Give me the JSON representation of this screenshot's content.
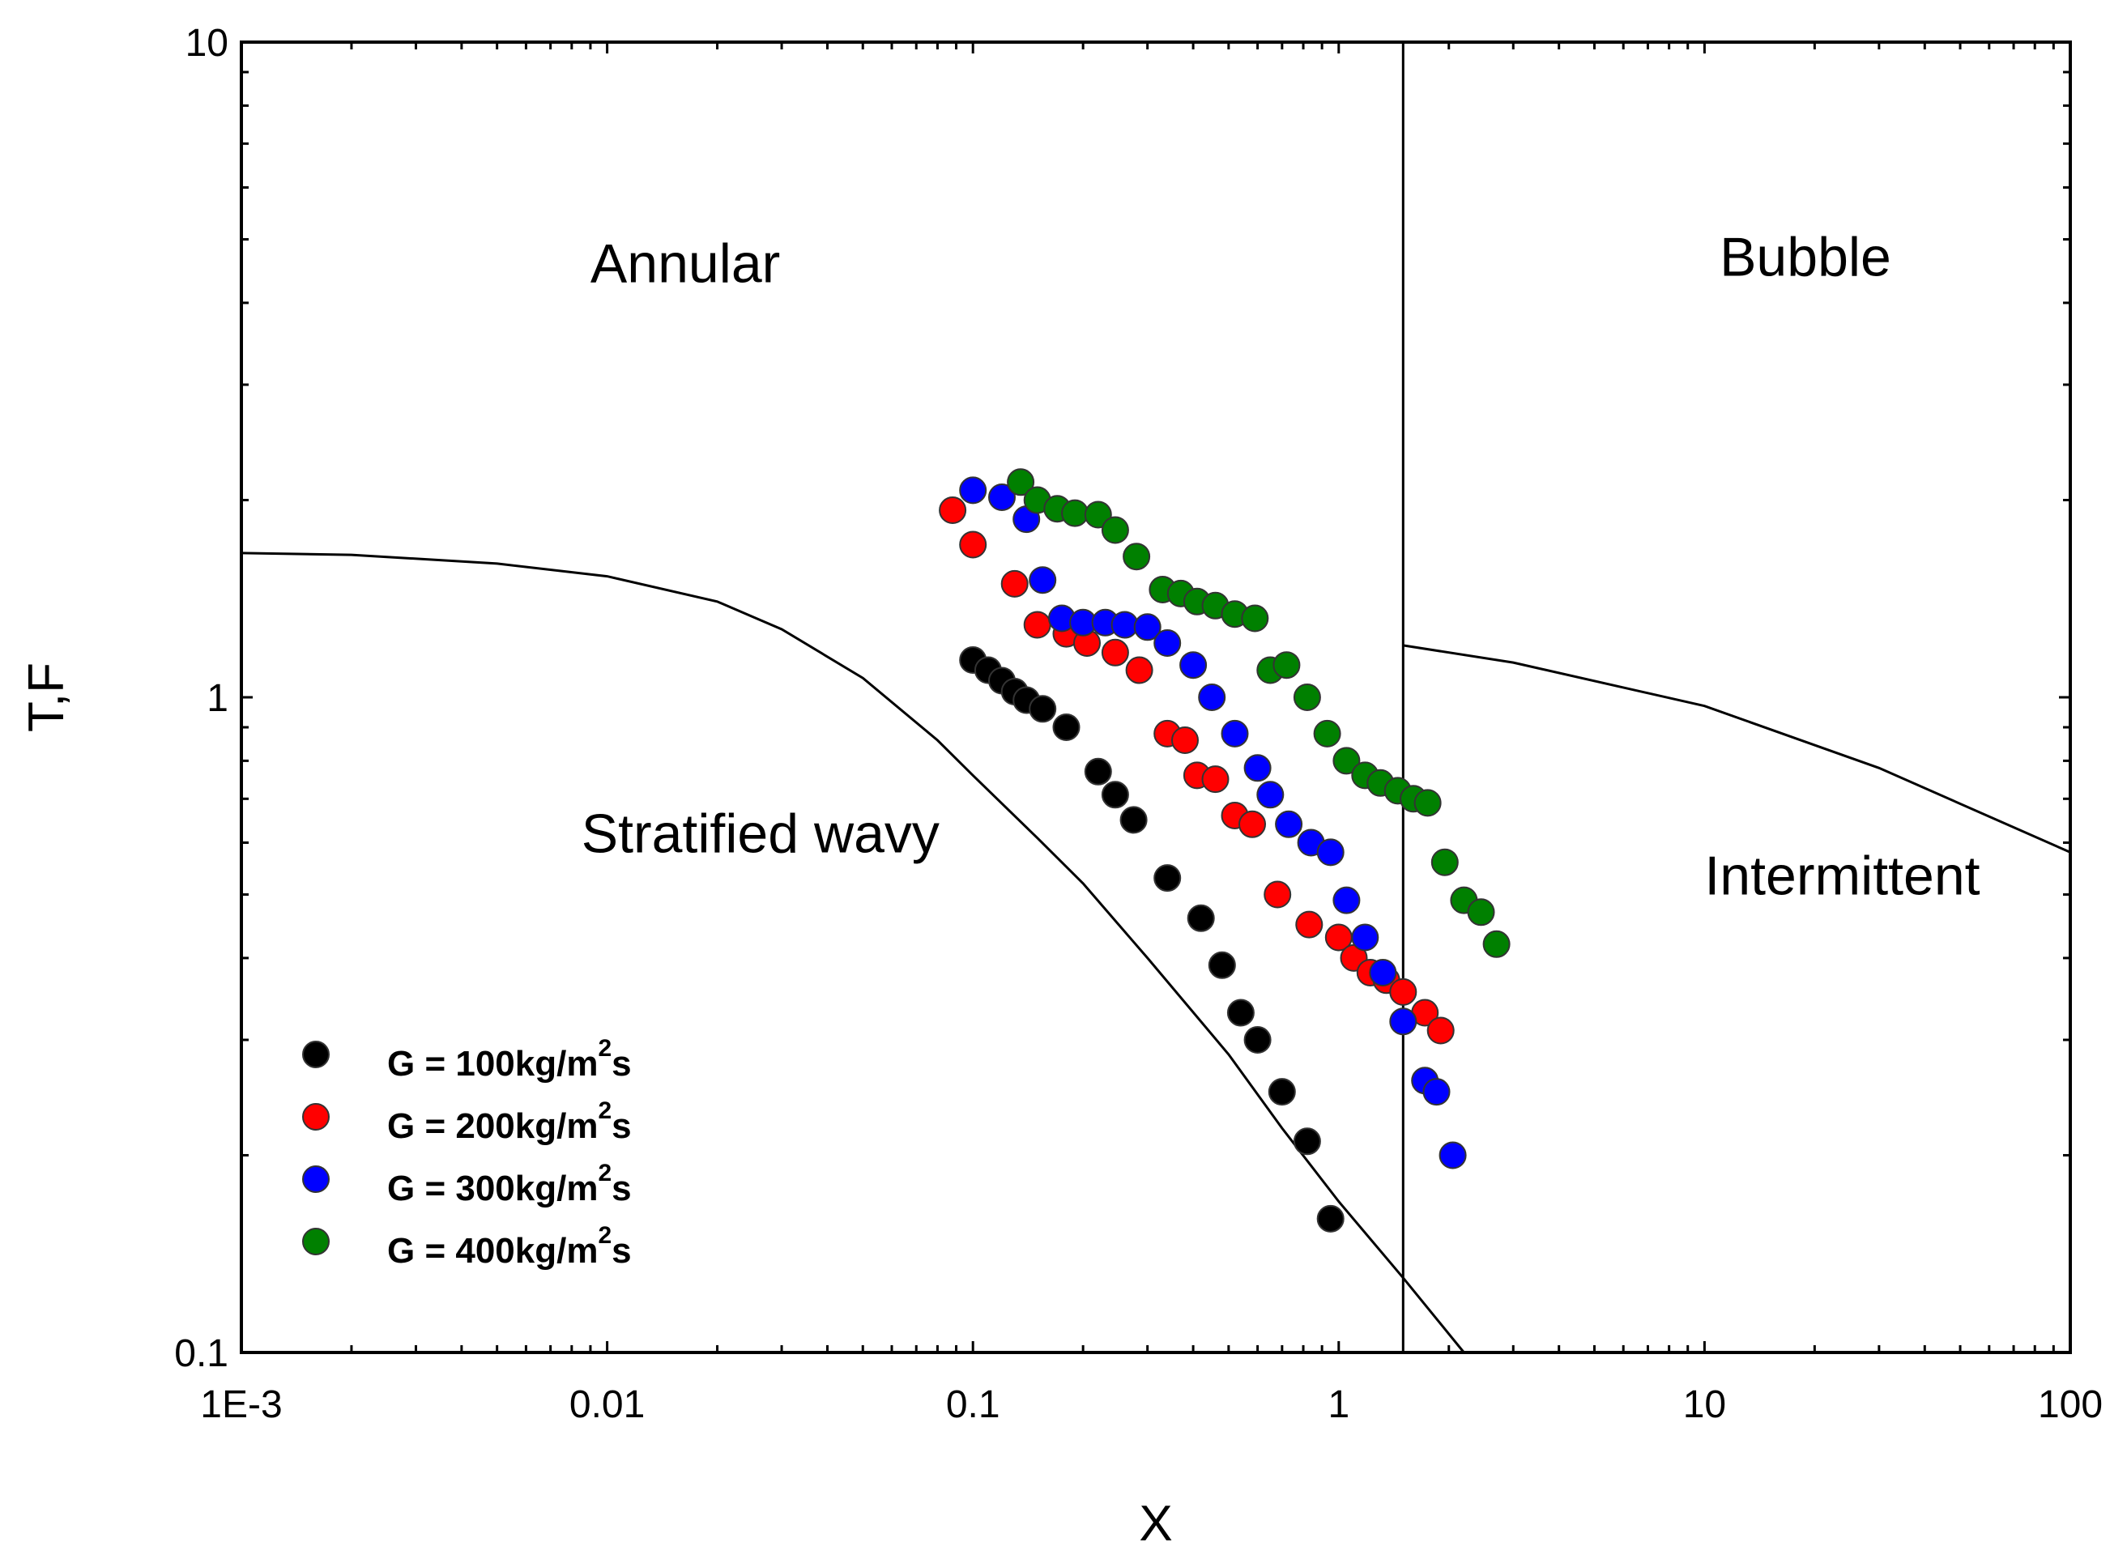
{
  "chart_data": {
    "type": "scatter",
    "title": "",
    "xlabel": "X",
    "ylabel": "T,F",
    "xscale": "log",
    "yscale": "log",
    "xlim": [
      0.001,
      100
    ],
    "ylim": [
      0.1,
      10
    ],
    "grid": false,
    "x_ticks": [
      {
        "value": 0.001,
        "label": "1E-3"
      },
      {
        "value": 0.01,
        "label": "0.01"
      },
      {
        "value": 0.1,
        "label": "0.1"
      },
      {
        "value": 1,
        "label": "1"
      },
      {
        "value": 10,
        "label": "10"
      },
      {
        "value": 100,
        "label": "100"
      }
    ],
    "y_ticks": [
      {
        "value": 0.1,
        "label": "0.1"
      },
      {
        "value": 1,
        "label": "1"
      },
      {
        "value": 10,
        "label": "10"
      }
    ],
    "regions": [
      {
        "name": "Annular",
        "x": 0.009,
        "y": 4.3
      },
      {
        "name": "Bubble",
        "x": 11,
        "y": 4.4
      },
      {
        "name": "Stratified wavy",
        "x": 0.0085,
        "y": 0.58
      },
      {
        "name": "Intermittent",
        "x": 10,
        "y": 0.5
      }
    ],
    "boundaries": [
      {
        "name": "stratified-boundary",
        "points": [
          [
            0.001,
            1.66
          ],
          [
            0.002,
            1.65
          ],
          [
            0.005,
            1.6
          ],
          [
            0.01,
            1.53
          ],
          [
            0.02,
            1.4
          ],
          [
            0.03,
            1.27
          ],
          [
            0.05,
            1.07
          ],
          [
            0.08,
            0.86
          ],
          [
            0.1,
            0.76
          ],
          [
            0.15,
            0.61
          ],
          [
            0.2,
            0.52
          ],
          [
            0.3,
            0.4
          ],
          [
            0.5,
            0.285
          ],
          [
            0.7,
            0.22
          ],
          [
            1.0,
            0.17
          ],
          [
            1.5,
            0.13
          ],
          [
            2.2,
            0.1
          ]
        ]
      },
      {
        "name": "annular-intermittent-boundary",
        "points": [
          [
            1.5,
            0.1
          ],
          [
            1.5,
            10
          ]
        ]
      },
      {
        "name": "bubble-intermittent-boundary",
        "points": [
          [
            1.5,
            1.2
          ],
          [
            3,
            1.13
          ],
          [
            10,
            0.97
          ],
          [
            30,
            0.78
          ],
          [
            100,
            0.58
          ]
        ]
      }
    ],
    "series": [
      {
        "name": "G = 100kg/m2s",
        "label": "G = 100kg/m",
        "sup": "2",
        "label_end": "s",
        "color": "#000000",
        "points": [
          [
            0.1,
            1.14
          ],
          [
            0.11,
            1.1
          ],
          [
            0.12,
            1.06
          ],
          [
            0.13,
            1.02
          ],
          [
            0.14,
            0.99
          ],
          [
            0.155,
            0.96
          ],
          [
            0.18,
            0.9
          ],
          [
            0.22,
            0.77
          ],
          [
            0.245,
            0.71
          ],
          [
            0.275,
            0.65
          ],
          [
            0.34,
            0.53
          ],
          [
            0.42,
            0.46
          ],
          [
            0.48,
            0.39
          ],
          [
            0.54,
            0.33
          ],
          [
            0.6,
            0.3
          ],
          [
            0.7,
            0.25
          ],
          [
            0.82,
            0.21
          ],
          [
            0.95,
            0.16
          ]
        ]
      },
      {
        "name": "G = 200kg/m2s",
        "label": "G = 200kg/m",
        "sup": "2",
        "label_end": "s",
        "color": "#ff0000",
        "points": [
          [
            0.088,
            1.93
          ],
          [
            0.1,
            1.71
          ],
          [
            0.13,
            1.49
          ],
          [
            0.15,
            1.29
          ],
          [
            0.18,
            1.25
          ],
          [
            0.205,
            1.21
          ],
          [
            0.245,
            1.17
          ],
          [
            0.285,
            1.1
          ],
          [
            0.34,
            0.88
          ],
          [
            0.38,
            0.86
          ],
          [
            0.41,
            0.76
          ],
          [
            0.46,
            0.75
          ],
          [
            0.52,
            0.66
          ],
          [
            0.58,
            0.64
          ],
          [
            0.68,
            0.5
          ],
          [
            0.83,
            0.45
          ],
          [
            1.0,
            0.43
          ],
          [
            1.1,
            0.4
          ],
          [
            1.22,
            0.38
          ],
          [
            1.35,
            0.37
          ],
          [
            1.5,
            0.355
          ],
          [
            1.72,
            0.33
          ],
          [
            1.9,
            0.31
          ]
        ]
      },
      {
        "name": "G = 300kg/m2s",
        "label": "G = 300kg/m",
        "sup": "2",
        "label_end": "s",
        "color": "#0000ff",
        "points": [
          [
            0.1,
            2.07
          ],
          [
            0.12,
            2.02
          ],
          [
            0.14,
            1.87
          ],
          [
            0.155,
            1.51
          ],
          [
            0.175,
            1.32
          ],
          [
            0.2,
            1.3
          ],
          [
            0.23,
            1.3
          ],
          [
            0.26,
            1.29
          ],
          [
            0.3,
            1.28
          ],
          [
            0.34,
            1.21
          ],
          [
            0.4,
            1.12
          ],
          [
            0.45,
            1.0
          ],
          [
            0.52,
            0.88
          ],
          [
            0.6,
            0.78
          ],
          [
            0.65,
            0.71
          ],
          [
            0.73,
            0.64
          ],
          [
            0.84,
            0.6
          ],
          [
            0.95,
            0.58
          ],
          [
            1.05,
            0.49
          ],
          [
            1.18,
            0.43
          ],
          [
            1.32,
            0.38
          ],
          [
            1.5,
            0.32
          ],
          [
            1.72,
            0.26
          ],
          [
            1.85,
            0.25
          ],
          [
            2.05,
            0.2
          ]
        ]
      },
      {
        "name": "G = 400kg/m2s",
        "label": "G = 400kg/m",
        "sup": "2",
        "label_end": "s",
        "color": "#008000",
        "points": [
          [
            0.135,
            2.13
          ],
          [
            0.15,
            2.0
          ],
          [
            0.17,
            1.94
          ],
          [
            0.19,
            1.91
          ],
          [
            0.22,
            1.9
          ],
          [
            0.245,
            1.8
          ],
          [
            0.28,
            1.64
          ],
          [
            0.33,
            1.46
          ],
          [
            0.37,
            1.44
          ],
          [
            0.41,
            1.4
          ],
          [
            0.46,
            1.38
          ],
          [
            0.52,
            1.34
          ],
          [
            0.59,
            1.32
          ],
          [
            0.65,
            1.1
          ],
          [
            0.72,
            1.12
          ],
          [
            0.82,
            1.0
          ],
          [
            0.93,
            0.88
          ],
          [
            1.05,
            0.8
          ],
          [
            1.18,
            0.76
          ],
          [
            1.3,
            0.74
          ],
          [
            1.45,
            0.72
          ],
          [
            1.6,
            0.7
          ],
          [
            1.75,
            0.69
          ],
          [
            1.95,
            0.56
          ],
          [
            2.2,
            0.49
          ],
          [
            2.45,
            0.47
          ],
          [
            2.7,
            0.42
          ]
        ]
      }
    ],
    "legend": {
      "placement": "bottom-left"
    }
  }
}
